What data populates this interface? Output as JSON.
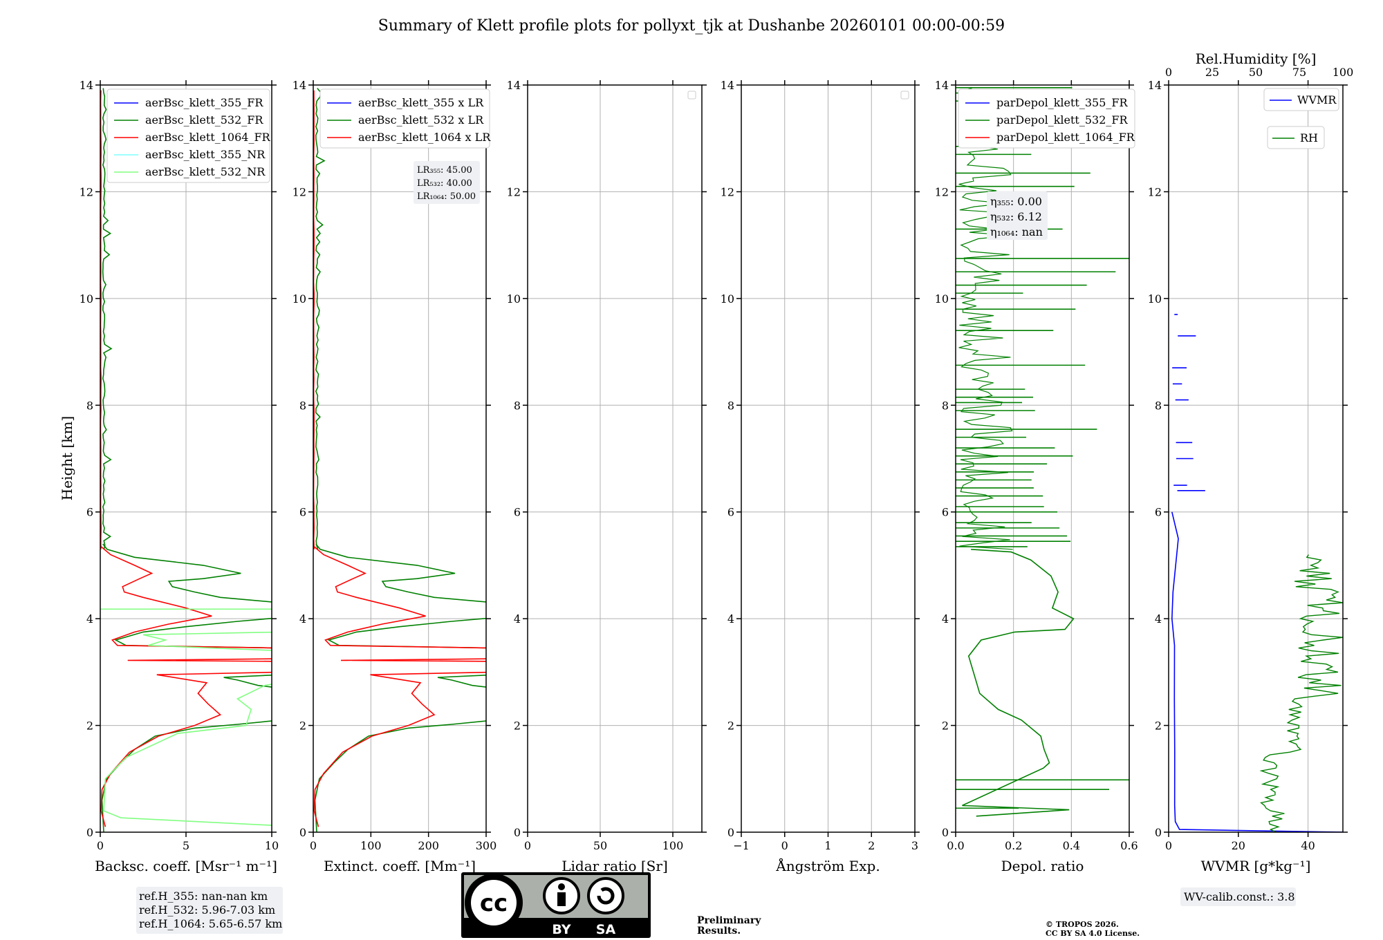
{
  "title": "Summary of Klett profile plots for pollyxt_tjk at Dushanbe 20260101 00:00-00:59",
  "ylabel": "Height [km]",
  "yticks": [
    "0",
    "2",
    "4",
    "6",
    "8",
    "10",
    "12",
    "14"
  ],
  "colors": {
    "blue": "#0000ff",
    "green": "#008000",
    "red": "#ff0000",
    "cyan": "#7fffff",
    "lightgreen": "#80ff80",
    "grid": "#b0b0b0",
    "note_red": "#ff3b3b"
  },
  "chart_data": [
    {
      "type": "line",
      "xlabel": "Backsc. coeff. [Msr⁻¹ m⁻¹]",
      "xlim": [
        0,
        10
      ],
      "ylim": [
        0,
        14
      ],
      "xticks": [
        "0",
        "5",
        "10"
      ],
      "legend": [
        "aerBsc_klett_355_FR",
        "aerBsc_klett_532_FR",
        "aerBsc_klett_1064_FR",
        "aerBsc_klett_355_NR",
        "aerBsc_klett_532_NR"
      ],
      "series": [
        {
          "name": "aerBsc_klett_532_FR",
          "color": "green",
          "points": [
            [
              0.2,
              0
            ],
            [
              0.1,
              0.6
            ],
            [
              0.4,
              1.0
            ],
            [
              1.2,
              1.3
            ],
            [
              2.2,
              1.6
            ],
            [
              3.5,
              1.9
            ],
            [
              6,
              2.0
            ],
            [
              8.5,
              2.05
            ],
            [
              10,
              2.1
            ]
          ]
        },
        {
          "name": "aerBsc_klett_1064_FR",
          "color": "red",
          "points": [
            [
              0.3,
              0.1
            ],
            [
              0.1,
              0.6
            ],
            [
              0.6,
              1.1
            ],
            [
              1.8,
              1.6
            ],
            [
              3.5,
              1.9
            ],
            [
              5.5,
              2.1
            ],
            [
              7.2,
              2.3
            ],
            [
              6.2,
              2.5
            ],
            [
              5.8,
              2.7
            ],
            [
              6.5,
              2.9
            ],
            [
              3.3,
              2.95
            ],
            [
              10,
              3.0
            ]
          ]
        },
        {
          "name": "aerBsc_klett_532_NR",
          "color": "lightgreen",
          "points": [
            [
              10,
              0.15
            ],
            [
              1.0,
              0.3
            ],
            [
              0.2,
              0.4
            ],
            [
              0.4,
              1.0
            ],
            [
              1.5,
              1.4
            ],
            [
              4,
              1.8
            ],
            [
              8.5,
              2.0
            ],
            [
              9.5,
              2.3
            ],
            [
              8.0,
              2.6
            ],
            [
              10,
              2.9
            ]
          ]
        }
      ]
    },
    {
      "type": "line",
      "xlabel": "Extinct. coeff. [Mm⁻¹]",
      "xlim": [
        0,
        300
      ],
      "ylim": [
        0,
        14
      ],
      "xticks": [
        "0",
        "100",
        "200",
        "300"
      ],
      "legend": [
        "aerBsc_klett_355 x LR",
        "aerBsc_klett_532 x LR",
        "aerBsc_klett_1064 x LR"
      ],
      "lr_box": {
        "lr355": "LR₃₅₅: 45.00",
        "lr532": "LR₅₃₂: 40.00",
        "lr1064": "LR₁₀₆₄: 50.00"
      }
    },
    {
      "type": "line",
      "xlabel": "Lidar ratio [Sr]",
      "xlim": [
        0,
        120
      ],
      "ylim": [
        0,
        14
      ],
      "xticks": [
        "0",
        "50",
        "100"
      ]
    },
    {
      "type": "line",
      "xlabel": "Ångström Exp.",
      "xlim": [
        -1,
        3
      ],
      "ylim": [
        0,
        14
      ],
      "xticks": [
        "−1",
        "0",
        "1",
        "2",
        "3"
      ]
    },
    {
      "type": "line",
      "xlabel": "Depol. ratio",
      "xlim": [
        0,
        0.6
      ],
      "ylim": [
        0,
        14
      ],
      "xticks": [
        "0.0",
        "0.2",
        "0.4",
        "0.6"
      ],
      "legend": [
        "parDepol_klett_355_FR",
        "parDepol_klett_532_FR",
        "parDepol_klett_1064_FR"
      ],
      "eta_box": {
        "eta355": "η₃₅₅: 0.00",
        "eta532": "η₅₃₂: 6.12",
        "eta1064": "η₁₀₆₄: nan"
      }
    },
    {
      "type": "line",
      "xlabel": "WVMR [g*kg⁻¹]",
      "xlim": [
        0,
        50
      ],
      "ylim": [
        0,
        14
      ],
      "xticks": [
        "0",
        "20",
        "40"
      ],
      "x2label": "Rel.Humidity [%]",
      "x2ticks": [
        "0",
        "25",
        "50",
        "75",
        "100"
      ],
      "legend": [
        "WVMR",
        "RH"
      ]
    }
  ],
  "notes": {
    "refH": [
      "ref.H_355: nan-nan km",
      "ref.H_532: 5.96-7.03 km",
      "ref.H_1064: 5.65-6.57 km"
    ],
    "preliminary": [
      "Preliminary",
      "Results."
    ],
    "copyright": [
      "© TROPOS 2026.",
      "CC BY SA 4.0 License."
    ],
    "wv_calib": "WV-calib.const.: 3.8",
    "cc_logo": {
      "cc": "cc",
      "by": "BY",
      "sa": "SA"
    }
  }
}
